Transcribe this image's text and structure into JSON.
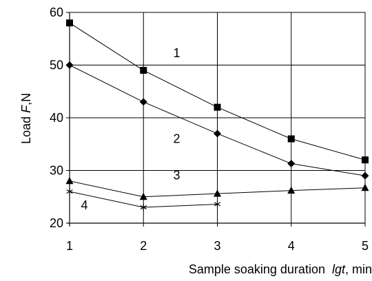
{
  "chart_data": {
    "type": "line",
    "xlabel_parts": [
      "Sample soaking duration  ",
      "lgt",
      ", min"
    ],
    "ylabel_parts": [
      "Load ",
      "F",
      ",N"
    ],
    "xlim": [
      1,
      5
    ],
    "ylim": [
      20,
      60
    ],
    "x_ticks": [
      1,
      2,
      3,
      4,
      5
    ],
    "y_ticks": [
      20,
      30,
      40,
      50,
      60
    ],
    "grid": true,
    "series": [
      {
        "name": "1",
        "marker": "square",
        "x": [
          1,
          2,
          3,
          4,
          5
        ],
        "y": [
          58,
          49,
          42,
          36,
          32
        ]
      },
      {
        "name": "2",
        "marker": "diamond",
        "x": [
          1,
          2,
          3,
          4,
          5
        ],
        "y": [
          50,
          43,
          37,
          31.3,
          29
        ]
      },
      {
        "name": "3",
        "marker": "triangle",
        "x": [
          1,
          2,
          3,
          4,
          5
        ],
        "y": [
          28,
          25,
          25.6,
          26.2,
          26.7
        ]
      },
      {
        "name": "4",
        "marker": "star",
        "x": [
          1,
          2,
          3
        ],
        "y": [
          26,
          23,
          23.6
        ]
      }
    ]
  }
}
